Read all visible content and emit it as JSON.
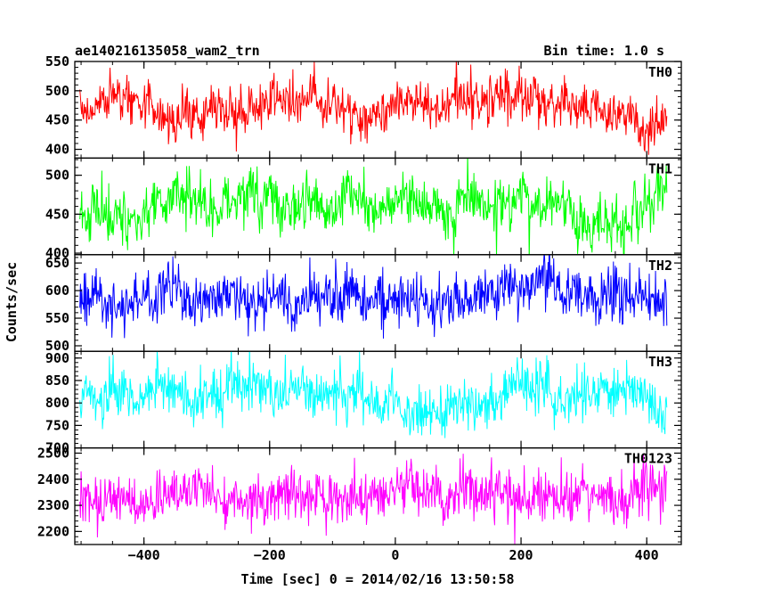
{
  "header": {
    "title": "ae140216135058_wam2_trn",
    "bin_time": "Bin time: 1.0 s"
  },
  "chart_data": {
    "type": "line",
    "title": "ae140216135058_wam2_trn",
    "xlabel": "Time [sec] 0 = 2014/02/16 13:50:58",
    "ylabel": "Counts/sec",
    "xlim": [
      -510,
      455
    ],
    "x_range_data": [
      -502,
      432
    ],
    "x_step": 1.0,
    "x_ticks": [
      -400,
      -200,
      0,
      200,
      400
    ],
    "x_tick_labels": [
      "−400",
      "−200",
      "0",
      "200",
      "400"
    ],
    "panels": [
      {
        "name": "TH0",
        "color": "#ff0000",
        "ylim": [
          385,
          550
        ],
        "ticks": [
          400,
          450,
          500,
          550
        ],
        "mean": 472,
        "spread": 20
      },
      {
        "name": "TH1",
        "color": "#00ff00",
        "ylim": [
          398,
          522
        ],
        "ticks": [
          400,
          450,
          500
        ],
        "mean": 461,
        "spread": 18
      },
      {
        "name": "TH2",
        "color": "#0000ff",
        "ylim": [
          490,
          665
        ],
        "ticks": [
          500,
          550,
          600,
          650
        ],
        "mean": 590,
        "spread": 23
      },
      {
        "name": "TH3",
        "color": "#00ffff",
        "ylim": [
          700,
          915
        ],
        "ticks": [
          700,
          750,
          800,
          850,
          900
        ],
        "mean": 814,
        "spread": 29
      },
      {
        "name": "TH0123",
        "color": "#ff00ff",
        "ylim": [
          2150,
          2520
        ],
        "ticks": [
          2200,
          2300,
          2400,
          2500
        ],
        "mean": 2340,
        "spread": 50
      }
    ]
  }
}
